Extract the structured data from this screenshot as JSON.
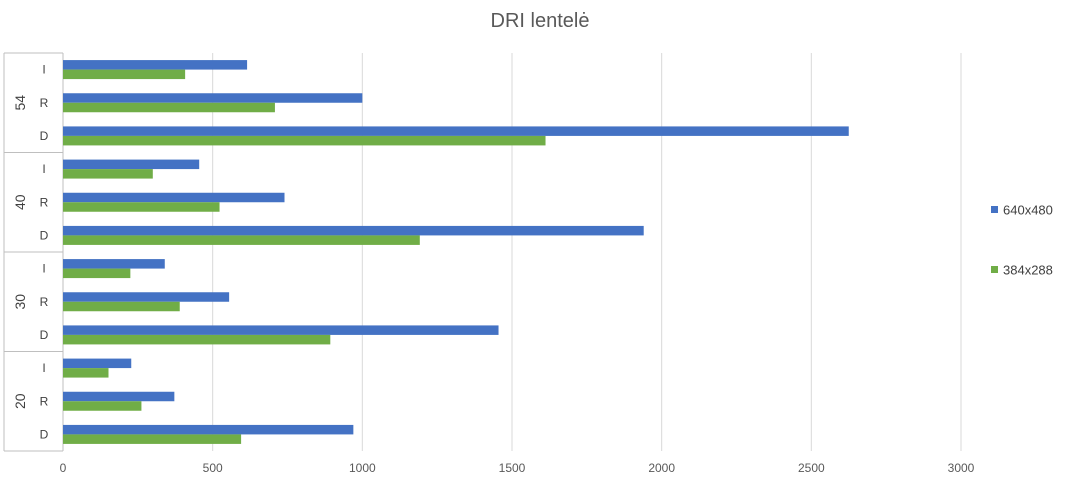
{
  "chart_data": {
    "type": "bar",
    "orientation": "horizontal",
    "title": "DRI lentelė",
    "xlabel": "",
    "ylabel": "",
    "xlim": [
      0,
      3000
    ],
    "x_ticks": [
      0,
      500,
      1000,
      1500,
      2000,
      2500,
      3000
    ],
    "grid": "vertical",
    "legend_position": "right",
    "groups": [
      {
        "label": "54",
        "categories": [
          "I",
          "R",
          "D"
        ]
      },
      {
        "label": "40",
        "categories": [
          "I",
          "R",
          "D"
        ]
      },
      {
        "label": "30",
        "categories": [
          "I",
          "R",
          "D"
        ]
      },
      {
        "label": "20",
        "categories": [
          "I",
          "R",
          "D"
        ]
      }
    ],
    "series": [
      {
        "name": "640x480",
        "color": "#4472c4",
        "values": [
          [
            615,
            1000,
            2625
          ],
          [
            455,
            740,
            1940
          ],
          [
            340,
            555,
            1455
          ],
          [
            228,
            372,
            970
          ]
        ]
      },
      {
        "name": "384x288",
        "color": "#70ad47",
        "values": [
          [
            408,
            708,
            1612
          ],
          [
            300,
            523,
            1192
          ],
          [
            225,
            390,
            893
          ],
          [
            152,
            262,
            595
          ]
        ]
      }
    ]
  }
}
